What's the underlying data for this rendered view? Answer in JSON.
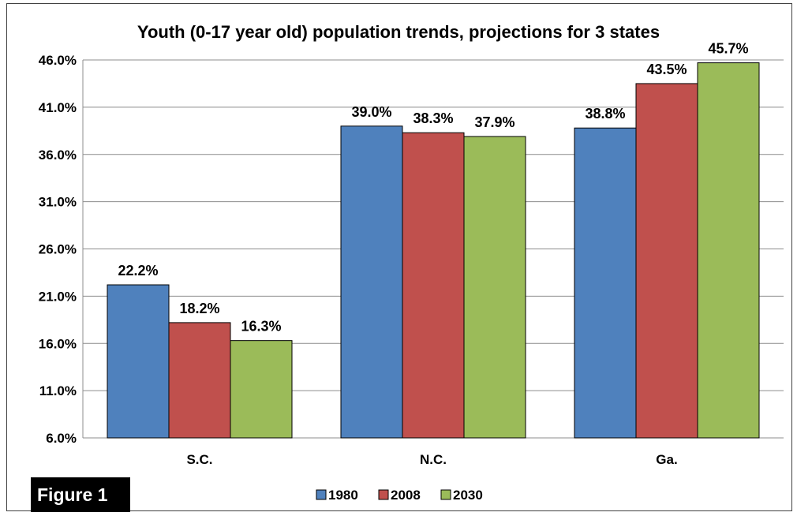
{
  "badge": "Figure 1",
  "chart_data": {
    "type": "bar",
    "title": "Youth (0-17 year old) population trends, projections for 3 states",
    "xlabel": "",
    "ylabel": "",
    "categories": [
      "S.C.",
      "N.C.",
      "Ga."
    ],
    "series": [
      {
        "name": "1980",
        "values": [
          22.2,
          39.0,
          38.8
        ],
        "labels": [
          "22.2%",
          "39.0%",
          "38.8%"
        ],
        "color": "#4f81bd"
      },
      {
        "name": "2008",
        "values": [
          18.2,
          38.3,
          43.5
        ],
        "labels": [
          "18.2%",
          "38.3%",
          "43.5%"
        ],
        "color": "#c0504d"
      },
      {
        "name": "2030",
        "values": [
          16.3,
          37.9,
          45.7
        ],
        "labels": [
          "16.3%",
          "37.9%",
          "45.7%"
        ],
        "color": "#9bbb59"
      }
    ],
    "ylim": [
      6.0,
      46.0
    ],
    "yticks": [
      6.0,
      11.0,
      16.0,
      21.0,
      26.0,
      31.0,
      36.0,
      41.0,
      46.0
    ],
    "ytick_labels": [
      "6.0%",
      "11.0%",
      "16.0%",
      "21.0%",
      "26.0%",
      "31.0%",
      "36.0%",
      "41.0%",
      "46.0%"
    ],
    "grid": true,
    "legend_position": "bottom"
  }
}
